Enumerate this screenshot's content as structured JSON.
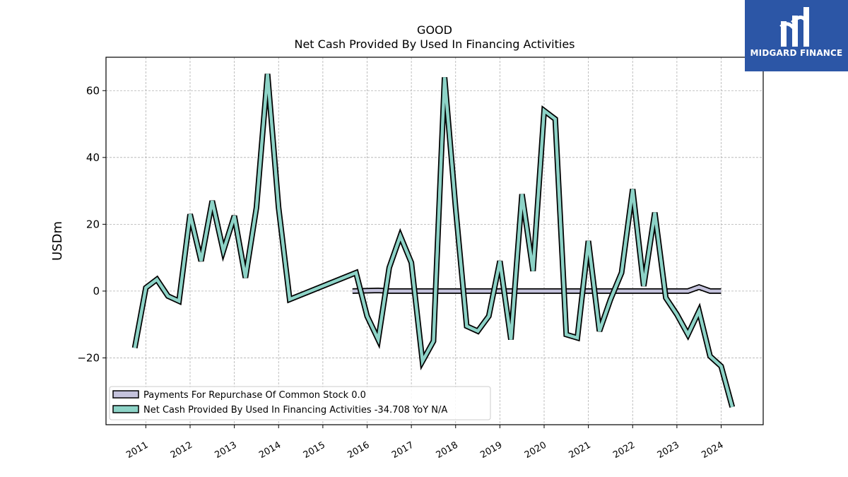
{
  "chart_data": {
    "type": "line",
    "title": "GOOD",
    "subtitle": "Net Cash Provided By Used In Financing Activities",
    "ylabel": "USDm",
    "xlabel": "",
    "ylim": [
      -40,
      70
    ],
    "xlim": [
      2010.1,
      2024.95
    ],
    "y_ticks": [
      -20,
      0,
      20,
      40,
      60
    ],
    "x_ticks": [
      2011,
      2012,
      2013,
      2014,
      2015,
      2016,
      2017,
      2018,
      2019,
      2020,
      2021,
      2022,
      2023,
      2024
    ],
    "grid": true,
    "legend_position": "lower-left",
    "series": [
      {
        "name": "Payments For Repurchase Of Common Stock  0.0",
        "color": "#c4c2dc",
        "x": [
          2015.67,
          2016.0,
          2016.25,
          2016.5,
          2016.75,
          2017.0,
          2017.25,
          2017.5,
          2017.75,
          2018.0,
          2018.25,
          2018.5,
          2018.75,
          2019.0,
          2019.25,
          2019.5,
          2019.75,
          2020.0,
          2020.25,
          2020.5,
          2020.75,
          2021.0,
          2021.25,
          2021.5,
          2021.75,
          2022.0,
          2022.25,
          2022.5,
          2022.75,
          2023.0,
          2023.25,
          2023.5,
          2023.75,
          2024.0
        ],
        "values": [
          0,
          0.1,
          0.2,
          0,
          0,
          0,
          0,
          0,
          0,
          0,
          0,
          0,
          0,
          0,
          0,
          0,
          0,
          0,
          0,
          0,
          0,
          0,
          0,
          0,
          0,
          0,
          0,
          0,
          0,
          0,
          0,
          1.2,
          0,
          0
        ]
      },
      {
        "name": "Net Cash Provided By Used In Financing Activities  -34.708 YoY N/A",
        "color": "#8dd3c7",
        "x": [
          2010.75,
          2011.0,
          2011.25,
          2011.5,
          2011.75,
          2012.0,
          2012.25,
          2012.5,
          2012.75,
          2013.0,
          2013.25,
          2013.5,
          2013.75,
          2014.0,
          2014.25,
          2015.75,
          2016.0,
          2016.25,
          2016.5,
          2016.75,
          2017.0,
          2017.25,
          2017.5,
          2017.75,
          2018.0,
          2018.25,
          2018.5,
          2018.75,
          2019.0,
          2019.25,
          2019.5,
          2019.75,
          2020.0,
          2020.25,
          2020.5,
          2020.75,
          2021.0,
          2021.25,
          2021.5,
          2021.75,
          2022.0,
          2022.25,
          2022.5,
          2022.75,
          2023.0,
          2023.25,
          2023.5,
          2023.75,
          2024.0,
          2024.25
        ],
        "values": [
          -17,
          1,
          3.5,
          -1.5,
          -3,
          23,
          9,
          27,
          12,
          22.5,
          4,
          25,
          65,
          25,
          -2.5,
          5.5,
          -7.5,
          -14.5,
          7,
          16.5,
          8.5,
          -21,
          -15,
          64,
          25,
          -10.5,
          -12,
          -7.5,
          9,
          -14.5,
          29,
          6,
          54,
          51.5,
          -13,
          -14,
          15,
          -12,
          -2.5,
          5.5,
          30.5,
          1.5,
          23.5,
          -2,
          -7,
          -13,
          -6,
          -19.5,
          -22.5,
          -34.708
        ]
      }
    ]
  },
  "logo": {
    "text": "MIDGARD FINANCE",
    "icon": "midgard-logo-icon"
  }
}
